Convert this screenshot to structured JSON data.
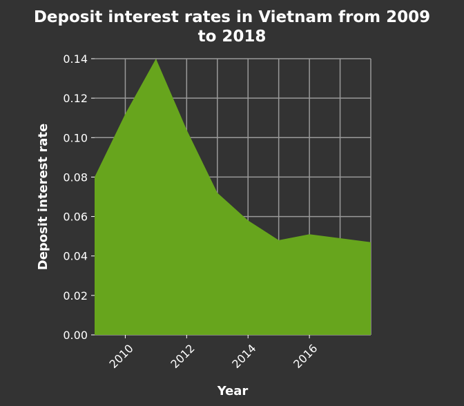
{
  "chart_data": {
    "type": "area",
    "title": "Deposit interest rates in Vietnam from 2009 to 2018",
    "title_lines": [
      "Deposit interest rates in Vietnam from 2009",
      "to 2018"
    ],
    "xlabel": "Year",
    "ylabel": "Deposit interest rate",
    "x": [
      2009,
      2010,
      2011,
      2012,
      2013,
      2014,
      2015,
      2016,
      2017,
      2018
    ],
    "series": [
      {
        "values": [
          0.08,
          0.112,
          0.14,
          0.104,
          0.072,
          0.058,
          0.048,
          0.051,
          0.049,
          0.047
        ]
      }
    ],
    "xlim": [
      2009,
      2018
    ],
    "ylim": [
      0,
      0.14
    ],
    "x_ticks": [
      2010,
      2012,
      2014,
      2016
    ],
    "x_tick_labels": [
      "2010",
      "2012",
      "2014",
      "2016"
    ],
    "y_ticks": [
      0,
      0.02,
      0.04,
      0.06,
      0.08,
      0.1,
      0.12,
      0.14
    ],
    "y_tick_labels": [
      "0.00",
      "0.02",
      "0.04",
      "0.06",
      "0.08",
      "0.10",
      "0.12",
      "0.14"
    ],
    "x_gridlines": [
      2010,
      2011,
      2012,
      2013,
      2014,
      2015,
      2016,
      2017,
      2018
    ],
    "grid": true,
    "legend": "none",
    "colors": {
      "background": "#333333",
      "area_fill": "#67a51d",
      "grid": "#9a9a9a",
      "text": "#ffffff"
    }
  }
}
